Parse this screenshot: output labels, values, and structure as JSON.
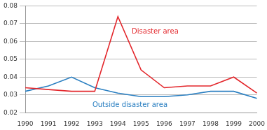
{
  "chart_data": {
    "type": "line",
    "categories": [
      "1990",
      "1991",
      "1992",
      "1993",
      "1994",
      "1995",
      "1996",
      "1997",
      "1998",
      "1999",
      "2000"
    ],
    "series": [
      {
        "name": "Disaster area",
        "color": "#e3262b",
        "values": [
          0.034,
          0.033,
          0.032,
          0.032,
          0.074,
          0.044,
          0.034,
          0.035,
          0.035,
          0.04,
          0.031
        ]
      },
      {
        "name": "Outside disaster area",
        "color": "#2a7fc1",
        "values": [
          0.032,
          0.035,
          0.04,
          0.034,
          0.031,
          0.029,
          0.029,
          0.03,
          0.032,
          0.032,
          0.028
        ]
      }
    ],
    "ylim": [
      0.02,
      0.08
    ],
    "yticks": [
      0.02,
      0.03,
      0.04,
      0.05,
      0.06,
      0.07,
      0.08
    ],
    "grid": true
  }
}
